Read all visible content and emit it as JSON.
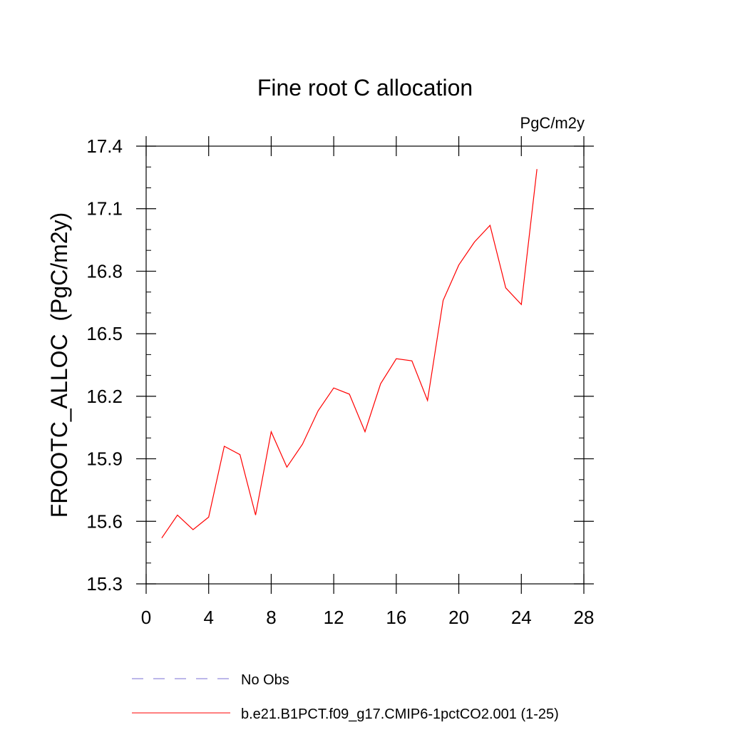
{
  "chart_data": {
    "type": "line",
    "title": "Fine root C allocation",
    "units_label": "PgC/m2y",
    "ylabel": "FROOTC_ALLOC  (PgC/m2y)",
    "xlabel": "",
    "xlim": [
      0,
      28
    ],
    "ylim": [
      15.3,
      17.4
    ],
    "xticks": [
      0,
      4,
      8,
      12,
      16,
      20,
      24,
      28
    ],
    "yticks": [
      15.3,
      15.6,
      15.9,
      16.2,
      16.5,
      16.8,
      17.1,
      17.4
    ],
    "ytick_labels": [
      "15.3",
      "15.6",
      "15.9",
      "16.2",
      "16.5",
      "16.8",
      "17.1",
      "17.4"
    ],
    "grid": false,
    "legend_position": "bottom",
    "series": [
      {
        "name": "b.e21.B1PCT.f09_g17.CMIP6-1pctCO2.001 (1-25)",
        "color": "#ff0000",
        "style": "solid",
        "x": [
          1,
          2,
          3,
          4,
          5,
          6,
          7,
          8,
          9,
          10,
          11,
          12,
          13,
          14,
          15,
          16,
          17,
          18,
          19,
          20,
          21,
          22,
          23,
          24,
          25
        ],
        "y": [
          15.52,
          15.63,
          15.56,
          15.62,
          15.96,
          15.92,
          15.63,
          16.03,
          15.86,
          15.97,
          16.13,
          16.24,
          16.21,
          16.03,
          16.26,
          16.38,
          16.37,
          16.18,
          16.66,
          16.83,
          16.94,
          17.02,
          16.72,
          16.64,
          17.29
        ]
      }
    ],
    "legend": [
      {
        "label": "No Obs",
        "color": "#7a6fd6",
        "style": "dashed"
      },
      {
        "label": "b.e21.B1PCT.f09_g17.CMIP6-1pctCO2.001 (1-25)",
        "color": "#ff0000",
        "style": "solid"
      }
    ]
  }
}
